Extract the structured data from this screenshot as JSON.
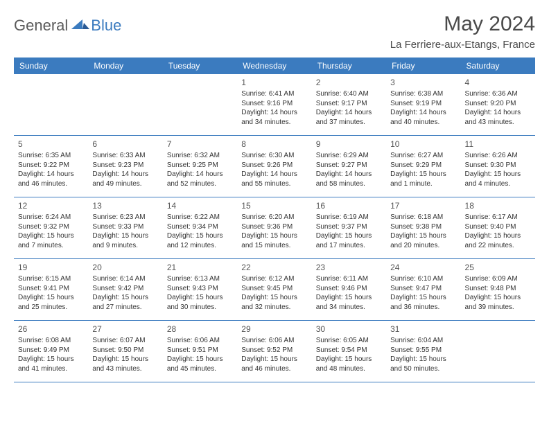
{
  "logo": {
    "general": "General",
    "blue": "Blue"
  },
  "title": "May 2024",
  "location": "La Ferriere-aux-Etangs, France",
  "colors": {
    "header_bg": "#3b7bbf",
    "header_text": "#ffffff",
    "text": "#333333",
    "rule": "#3b7bbf"
  },
  "day_names": [
    "Sunday",
    "Monday",
    "Tuesday",
    "Wednesday",
    "Thursday",
    "Friday",
    "Saturday"
  ],
  "weeks": [
    [
      null,
      null,
      null,
      {
        "n": "1",
        "sr": "6:41 AM",
        "ss": "9:16 PM",
        "dl": "14 hours and 34 minutes."
      },
      {
        "n": "2",
        "sr": "6:40 AM",
        "ss": "9:17 PM",
        "dl": "14 hours and 37 minutes."
      },
      {
        "n": "3",
        "sr": "6:38 AM",
        "ss": "9:19 PM",
        "dl": "14 hours and 40 minutes."
      },
      {
        "n": "4",
        "sr": "6:36 AM",
        "ss": "9:20 PM",
        "dl": "14 hours and 43 minutes."
      }
    ],
    [
      {
        "n": "5",
        "sr": "6:35 AM",
        "ss": "9:22 PM",
        "dl": "14 hours and 46 minutes."
      },
      {
        "n": "6",
        "sr": "6:33 AM",
        "ss": "9:23 PM",
        "dl": "14 hours and 49 minutes."
      },
      {
        "n": "7",
        "sr": "6:32 AM",
        "ss": "9:25 PM",
        "dl": "14 hours and 52 minutes."
      },
      {
        "n": "8",
        "sr": "6:30 AM",
        "ss": "9:26 PM",
        "dl": "14 hours and 55 minutes."
      },
      {
        "n": "9",
        "sr": "6:29 AM",
        "ss": "9:27 PM",
        "dl": "14 hours and 58 minutes."
      },
      {
        "n": "10",
        "sr": "6:27 AM",
        "ss": "9:29 PM",
        "dl": "15 hours and 1 minute."
      },
      {
        "n": "11",
        "sr": "6:26 AM",
        "ss": "9:30 PM",
        "dl": "15 hours and 4 minutes."
      }
    ],
    [
      {
        "n": "12",
        "sr": "6:24 AM",
        "ss": "9:32 PM",
        "dl": "15 hours and 7 minutes."
      },
      {
        "n": "13",
        "sr": "6:23 AM",
        "ss": "9:33 PM",
        "dl": "15 hours and 9 minutes."
      },
      {
        "n": "14",
        "sr": "6:22 AM",
        "ss": "9:34 PM",
        "dl": "15 hours and 12 minutes."
      },
      {
        "n": "15",
        "sr": "6:20 AM",
        "ss": "9:36 PM",
        "dl": "15 hours and 15 minutes."
      },
      {
        "n": "16",
        "sr": "6:19 AM",
        "ss": "9:37 PM",
        "dl": "15 hours and 17 minutes."
      },
      {
        "n": "17",
        "sr": "6:18 AM",
        "ss": "9:38 PM",
        "dl": "15 hours and 20 minutes."
      },
      {
        "n": "18",
        "sr": "6:17 AM",
        "ss": "9:40 PM",
        "dl": "15 hours and 22 minutes."
      }
    ],
    [
      {
        "n": "19",
        "sr": "6:15 AM",
        "ss": "9:41 PM",
        "dl": "15 hours and 25 minutes."
      },
      {
        "n": "20",
        "sr": "6:14 AM",
        "ss": "9:42 PM",
        "dl": "15 hours and 27 minutes."
      },
      {
        "n": "21",
        "sr": "6:13 AM",
        "ss": "9:43 PM",
        "dl": "15 hours and 30 minutes."
      },
      {
        "n": "22",
        "sr": "6:12 AM",
        "ss": "9:45 PM",
        "dl": "15 hours and 32 minutes."
      },
      {
        "n": "23",
        "sr": "6:11 AM",
        "ss": "9:46 PM",
        "dl": "15 hours and 34 minutes."
      },
      {
        "n": "24",
        "sr": "6:10 AM",
        "ss": "9:47 PM",
        "dl": "15 hours and 36 minutes."
      },
      {
        "n": "25",
        "sr": "6:09 AM",
        "ss": "9:48 PM",
        "dl": "15 hours and 39 minutes."
      }
    ],
    [
      {
        "n": "26",
        "sr": "6:08 AM",
        "ss": "9:49 PM",
        "dl": "15 hours and 41 minutes."
      },
      {
        "n": "27",
        "sr": "6:07 AM",
        "ss": "9:50 PM",
        "dl": "15 hours and 43 minutes."
      },
      {
        "n": "28",
        "sr": "6:06 AM",
        "ss": "9:51 PM",
        "dl": "15 hours and 45 minutes."
      },
      {
        "n": "29",
        "sr": "6:06 AM",
        "ss": "9:52 PM",
        "dl": "15 hours and 46 minutes."
      },
      {
        "n": "30",
        "sr": "6:05 AM",
        "ss": "9:54 PM",
        "dl": "15 hours and 48 minutes."
      },
      {
        "n": "31",
        "sr": "6:04 AM",
        "ss": "9:55 PM",
        "dl": "15 hours and 50 minutes."
      },
      null
    ]
  ],
  "labels": {
    "sunrise": "Sunrise:",
    "sunset": "Sunset:",
    "daylight": "Daylight:"
  }
}
